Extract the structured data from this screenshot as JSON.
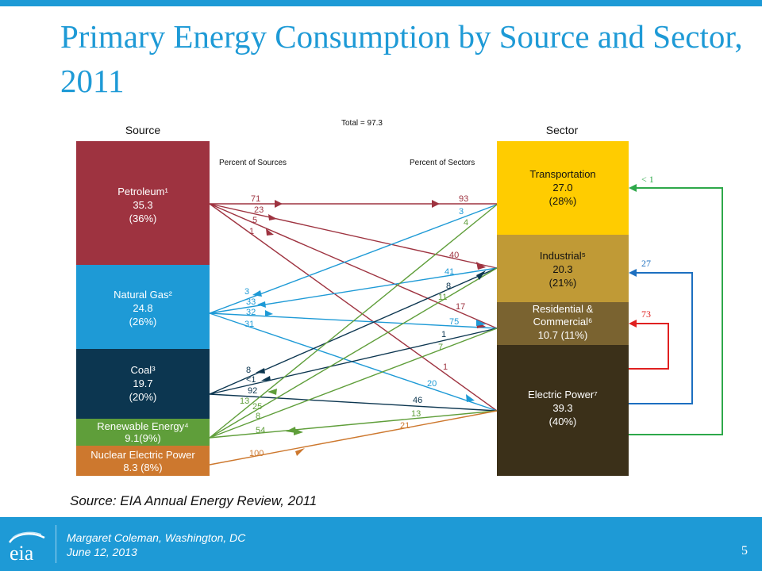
{
  "title": "Primary Energy Consumption by Source and Sector, 2011",
  "total": "Total = 97.3",
  "source_header": "Source",
  "sector_header": "Sector",
  "percent_sources_label": "Percent of Sources",
  "percent_sectors_label": "Percent of Sectors",
  "sources": [
    {
      "name": "Petroleum¹",
      "value": "35.3",
      "pct": "(36%)",
      "color": "#9e3340"
    },
    {
      "name": "Natural Gas²",
      "value": "24.8",
      "pct": "(26%)",
      "color": "#1e9ad6"
    },
    {
      "name": "Coal³",
      "value": "19.7",
      "pct": "(20%)",
      "color": "#0c3650"
    },
    {
      "name": "Renewable Energy⁴",
      "value": "9.1(9%)",
      "color": "#5f9e3a"
    },
    {
      "name": "Nuclear Electric Power",
      "value": "8.3 (8%)",
      "color": "#cd782e"
    }
  ],
  "sectors": [
    {
      "name": "Transportation",
      "value": "27.0",
      "pct": "(28%)",
      "color": "#ffcc00"
    },
    {
      "name": "Industrial⁵",
      "value": "20.3",
      "pct": "(21%)",
      "color": "#c09a36"
    },
    {
      "name": "Residential &",
      "name2": "Commercial⁶",
      "value": "10.7 (11%)",
      "color": "#7a6330"
    },
    {
      "name": "Electric Power⁷",
      "value": "39.3",
      "pct": "(40%)",
      "color": "#3b3019"
    }
  ],
  "flow_labels_source": [
    "71",
    "23",
    "5",
    "1",
    "3",
    "33",
    "32",
    "31",
    "8",
    "<1",
    "92",
    "13",
    "25",
    "8",
    "54",
    "100"
  ],
  "flow_labels_sector": [
    "93",
    "3",
    "4",
    "40",
    "41",
    "8",
    "11",
    "17",
    "75",
    "1",
    "7",
    "1",
    "20",
    "46",
    "13",
    "21"
  ],
  "feedback_labels": [
    "< 1",
    "27",
    "73"
  ],
  "feedback_colors": [
    "#2ea84a",
    "#1c6fc0",
    "#e02020"
  ],
  "source_note": "Source: EIA Annual Energy Review, 2011",
  "footer": {
    "logo_text": "eia",
    "presenter": "Margaret Coleman, Washington, DC",
    "date": "June 12, 2013",
    "slide_number": "5"
  }
}
